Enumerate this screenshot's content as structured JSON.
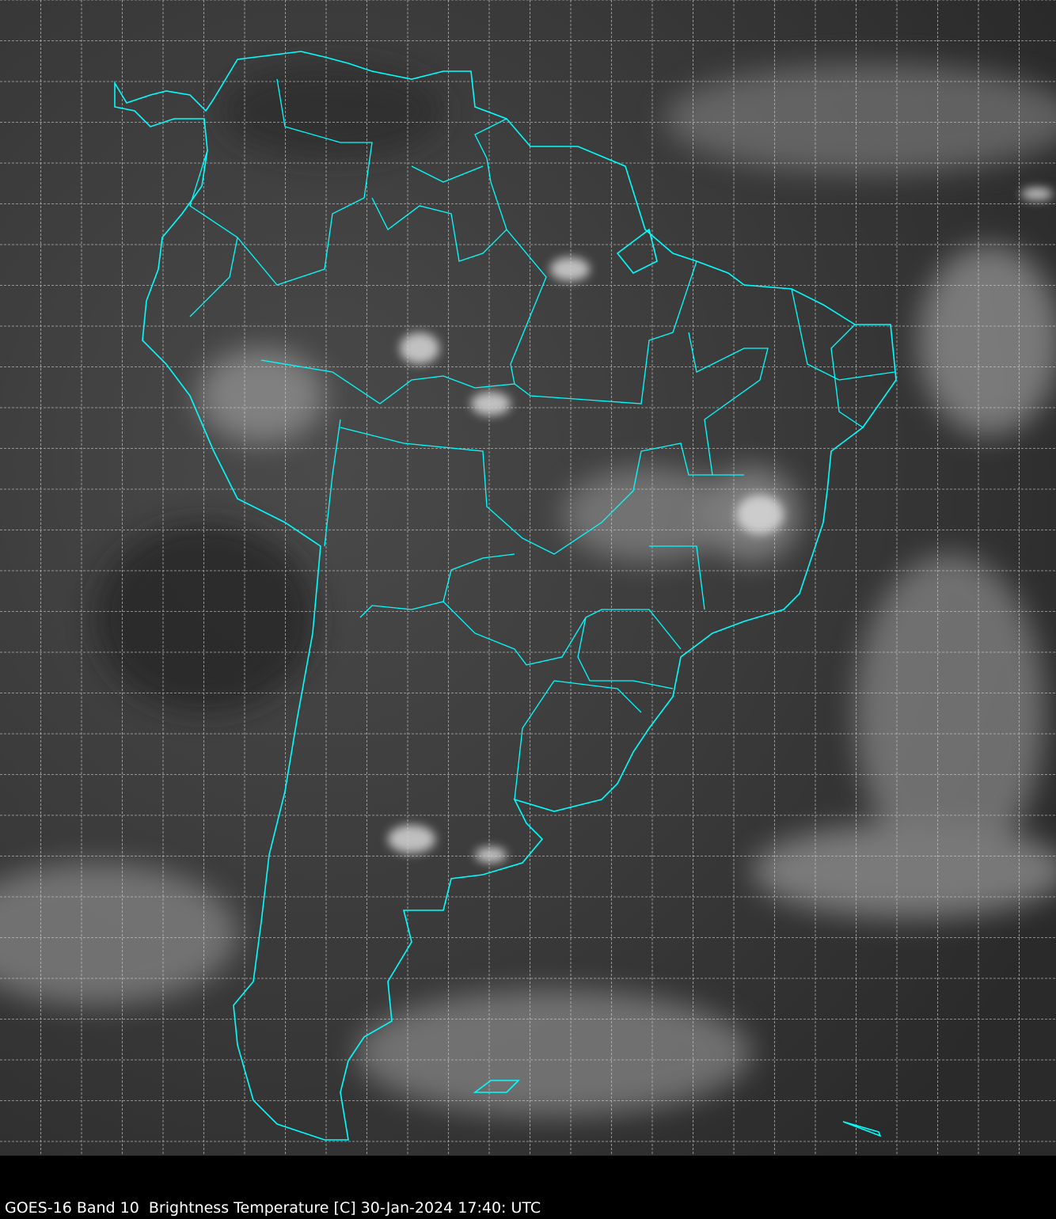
{
  "caption": "GOES-16 Band 10  Brightness Temperature [C] 30-Jan-2024 17:40: UTC",
  "colors": {
    "coastline": "#00ffff",
    "grid": "#d0d0d0",
    "background": "#000000"
  },
  "imagery": {
    "type": "grayscale infrared satellite image",
    "region": "South America"
  }
}
